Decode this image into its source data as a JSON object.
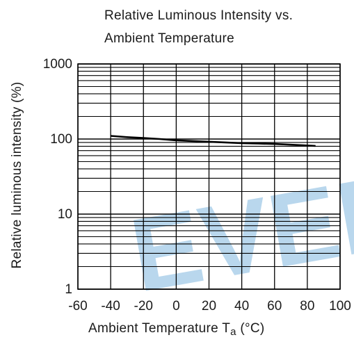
{
  "chart_data": {
    "type": "line",
    "title_lines": [
      "Relative Luminous Intensity vs.",
      "Ambient Temperature"
    ],
    "xlabel": "Ambient Temperature T",
    "xlabel_subscript": "a",
    "xlabel_unit": " (°C)",
    "ylabel": "Relative luminous intensity (%)",
    "xlim": [
      -60,
      100
    ],
    "ylim": [
      1,
      1000
    ],
    "yscale": "log",
    "grid": true,
    "x_ticks": [
      -60,
      -40,
      -20,
      0,
      20,
      40,
      60,
      80,
      100
    ],
    "x_tick_labels": [
      "-60",
      "-40",
      "-20",
      "0",
      "20",
      "40",
      "60",
      "80",
      "100"
    ],
    "y_tick_labels": [
      {
        "value": 1,
        "label": "1"
      },
      {
        "value": 10,
        "label": "10"
      },
      {
        "value": 100,
        "label": "100"
      },
      {
        "value": 1000,
        "label": "1000"
      }
    ],
    "series": [
      {
        "x": [
          -40,
          -30,
          -20,
          -10,
          0,
          10,
          20,
          30,
          40,
          50,
          60,
          70,
          80,
          85
        ],
        "values": [
          110,
          106,
          103,
          100,
          96,
          94,
          92,
          90,
          88,
          87,
          86,
          84,
          82,
          81
        ]
      }
    ],
    "watermark": "EVER",
    "colors": {
      "line": "#000000",
      "grid": "#000000",
      "watermark": "#7fb7df"
    }
  }
}
